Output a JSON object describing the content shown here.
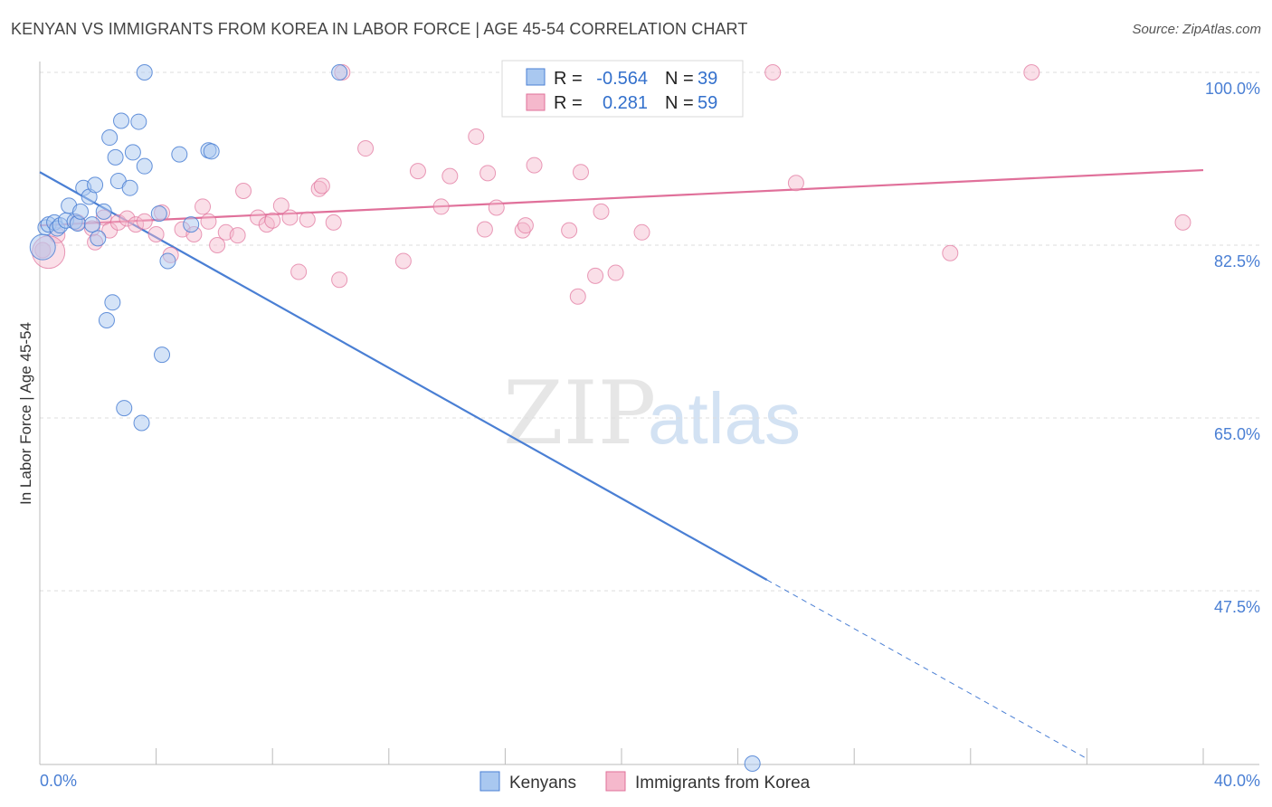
{
  "title": "KENYAN VS IMMIGRANTS FROM KOREA IN LABOR FORCE | AGE 45-54 CORRELATION CHART",
  "source": "Source: ZipAtlas.com",
  "watermark": {
    "zip": "ZIP",
    "atlas": "atlas"
  },
  "colors": {
    "blue": "#4a7fd4",
    "blue_fill": "#a9c8f0",
    "pink": "#e0709a",
    "pink_fill": "#f5b8cc",
    "grid": "#dddddd"
  },
  "legend": {
    "rows": [
      {
        "r_label": "R =",
        "r_value": "-0.564",
        "n_label": "N =",
        "n_value": "39"
      },
      {
        "r_label": "R =",
        "r_value": "0.281",
        "n_label": "N =",
        "n_value": "59"
      }
    ]
  },
  "bottom_legend": {
    "series1": "Kenyans",
    "series2": "Immigrants from Korea"
  },
  "chart_data": {
    "type": "scatter",
    "title": "KENYAN VS IMMIGRANTS FROM KOREA IN LABOR FORCE | AGE 45-54 CORRELATION CHART",
    "xlabel": "",
    "ylabel": "In Labor Force | Age 45-54",
    "xlim": [
      0,
      40
    ],
    "ylim": [
      30,
      101.5
    ],
    "x_ticks": [
      "0.0%",
      "40.0%"
    ],
    "y_ticks": [
      {
        "value": 100,
        "label": "100.0%"
      },
      {
        "value": 82.5,
        "label": "82.5%"
      },
      {
        "value": 65,
        "label": "65.0%"
      },
      {
        "value": 47.5,
        "label": "47.5%"
      }
    ],
    "grid": true,
    "legend_position": "top-center",
    "series": [
      {
        "name": "Kenyans",
        "color": "#4a7fd4",
        "trend": {
          "r": -0.564,
          "n": 39,
          "x0": 0,
          "y0": 89.9,
          "x1": 25,
          "y1": 48.6,
          "x_dash_end": 36,
          "y_dash_end": 30.5
        },
        "points": [
          [
            0.2,
            84.3
          ],
          [
            0.3,
            84.6
          ],
          [
            0.5,
            84.8
          ],
          [
            0.6,
            84.2
          ],
          [
            0.7,
            84.5
          ],
          [
            0.9,
            85.0
          ],
          [
            1.2,
            84.9
          ],
          [
            1.0,
            86.5
          ],
          [
            1.3,
            84.7
          ],
          [
            1.4,
            85.9
          ],
          [
            1.5,
            88.3
          ],
          [
            1.7,
            87.4
          ],
          [
            1.8,
            84.6
          ],
          [
            1.9,
            88.6
          ],
          [
            2.0,
            83.2
          ],
          [
            2.2,
            85.9
          ],
          [
            2.3,
            74.9
          ],
          [
            2.4,
            93.4
          ],
          [
            2.5,
            76.7
          ],
          [
            2.6,
            91.4
          ],
          [
            2.7,
            89.0
          ],
          [
            2.8,
            95.1
          ],
          [
            2.9,
            66.0
          ],
          [
            3.1,
            88.3
          ],
          [
            3.2,
            91.9
          ],
          [
            3.4,
            95.0
          ],
          [
            3.5,
            64.5
          ],
          [
            3.6,
            100.0
          ],
          [
            3.6,
            90.5
          ],
          [
            4.1,
            85.7
          ],
          [
            4.2,
            71.4
          ],
          [
            4.4,
            80.9
          ],
          [
            4.8,
            91.7
          ],
          [
            5.2,
            84.6
          ],
          [
            5.8,
            92.1
          ],
          [
            5.9,
            92.0
          ],
          [
            10.3,
            100.0
          ],
          [
            24.5,
            30.0
          ],
          [
            0.1,
            82.3
          ]
        ]
      },
      {
        "name": "Immigrants from Korea",
        "color": "#e0709a",
        "trend": {
          "r": 0.281,
          "n": 59,
          "x0": 0,
          "y0": 84.5,
          "x1": 40,
          "y1": 90.1
        },
        "points": [
          [
            0.1,
            82.0
          ],
          [
            0.6,
            83.5
          ],
          [
            1.3,
            84.8
          ],
          [
            1.8,
            84.2
          ],
          [
            1.9,
            82.8
          ],
          [
            2.2,
            85.3
          ],
          [
            2.4,
            84.0
          ],
          [
            2.7,
            84.8
          ],
          [
            3.0,
            85.2
          ],
          [
            3.3,
            84.6
          ],
          [
            3.6,
            84.9
          ],
          [
            4.0,
            83.6
          ],
          [
            4.2,
            85.8
          ],
          [
            4.5,
            81.5
          ],
          [
            4.9,
            84.1
          ],
          [
            5.3,
            83.6
          ],
          [
            5.6,
            86.4
          ],
          [
            5.8,
            84.9
          ],
          [
            6.1,
            82.5
          ],
          [
            6.4,
            83.8
          ],
          [
            6.8,
            83.5
          ],
          [
            7.0,
            88.0
          ],
          [
            7.5,
            85.3
          ],
          [
            7.8,
            84.6
          ],
          [
            8.0,
            85.0
          ],
          [
            8.3,
            86.5
          ],
          [
            8.6,
            85.3
          ],
          [
            8.9,
            79.8
          ],
          [
            9.2,
            85.1
          ],
          [
            9.6,
            88.2
          ],
          [
            9.7,
            88.5
          ],
          [
            10.1,
            84.8
          ],
          [
            10.3,
            79.0
          ],
          [
            10.4,
            100.0
          ],
          [
            11.2,
            92.3
          ],
          [
            12.5,
            80.9
          ],
          [
            13.0,
            90.0
          ],
          [
            13.8,
            86.4
          ],
          [
            14.1,
            89.5
          ],
          [
            15.3,
            84.1
          ],
          [
            15.4,
            89.8
          ],
          [
            15.0,
            93.5
          ],
          [
            15.7,
            86.3
          ],
          [
            16.6,
            84.0
          ],
          [
            16.7,
            84.5
          ],
          [
            17.0,
            90.6
          ],
          [
            18.2,
            84.0
          ],
          [
            18.5,
            77.3
          ],
          [
            18.6,
            89.9
          ],
          [
            19.1,
            79.4
          ],
          [
            19.3,
            85.9
          ],
          [
            19.8,
            79.7
          ],
          [
            20.7,
            83.8
          ],
          [
            25.2,
            100.0
          ],
          [
            26.0,
            88.8
          ],
          [
            31.3,
            81.7
          ],
          [
            34.1,
            100.0
          ],
          [
            39.3,
            84.8
          ],
          [
            0.3,
            81.8
          ]
        ]
      }
    ]
  }
}
